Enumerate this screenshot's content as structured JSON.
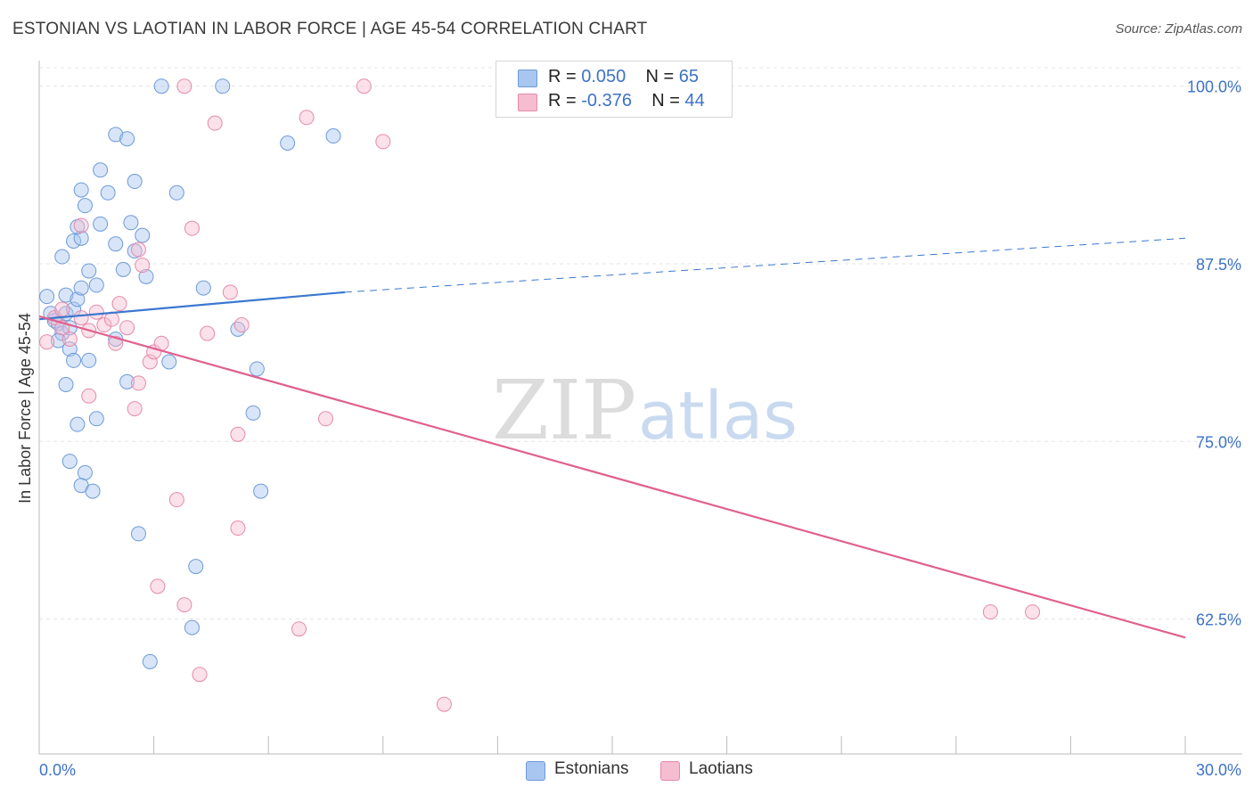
{
  "title": "ESTONIAN VS LAOTIAN IN LABOR FORCE | AGE 45-54 CORRELATION CHART",
  "source": "Source: ZipAtlas.com",
  "watermark": {
    "zip": "ZIP",
    "atlas": "atlas"
  },
  "legend": {
    "rows": [
      {
        "r_label": "R = ",
        "r_value": "0.050",
        "n_label": "N = ",
        "n_value": "65",
        "color": "#a8c6f0",
        "border": "#6d9ad8"
      },
      {
        "r_label": "R = ",
        "r_value": "-0.376",
        "n_label": "N = ",
        "n_value": "44",
        "color": "#f6bcd0",
        "border": "#e68aaa"
      }
    ]
  },
  "bottom_legend": [
    {
      "label": "Estonians",
      "color": "#a8c6f0",
      "border": "#6d9ad8"
    },
    {
      "label": "Laotians",
      "color": "#f6bcd0",
      "border": "#e68aaa"
    }
  ],
  "chart_data": {
    "type": "scatter",
    "title": "ESTONIAN VS LAOTIAN IN LABOR FORCE | AGE 45-54 CORRELATION CHART",
    "xlabel": "",
    "ylabel": "In Labor Force | Age 45-54",
    "xlim": [
      0,
      30
    ],
    "ylim": [
      53,
      101.3
    ],
    "x_tick_labels": [
      "0.0%",
      "30.0%"
    ],
    "y_ticks": [
      62.5,
      75.0,
      87.5,
      100.0
    ],
    "y_tick_labels": [
      "62.5%",
      "75.0%",
      "87.5%",
      "100.0%"
    ],
    "grid": true,
    "series": [
      {
        "name": "Estonians",
        "color": "#7ba7e0",
        "line_color": "#3b78d0",
        "trend": {
          "x": [
            0,
            8.0
          ],
          "y": [
            83.6,
            85.5
          ],
          "dashed_to": [
            30.0,
            89.3
          ]
        },
        "points": [
          [
            0.2,
            85.2
          ],
          [
            0.3,
            84.0
          ],
          [
            0.4,
            83.5
          ],
          [
            0.5,
            83.3
          ],
          [
            0.6,
            82.6
          ],
          [
            0.7,
            84.0
          ],
          [
            0.8,
            83.0
          ],
          [
            0.5,
            82.1
          ],
          [
            0.9,
            84.3
          ],
          [
            0.7,
            85.3
          ],
          [
            1.0,
            85.0
          ],
          [
            1.1,
            85.8
          ],
          [
            0.8,
            81.5
          ],
          [
            0.9,
            80.7
          ],
          [
            1.3,
            80.7
          ],
          [
            0.7,
            79.0
          ],
          [
            1.0,
            76.2
          ],
          [
            1.5,
            76.6
          ],
          [
            0.8,
            73.6
          ],
          [
            1.2,
            72.8
          ],
          [
            1.1,
            71.9
          ],
          [
            1.4,
            71.5
          ],
          [
            0.6,
            88.0
          ],
          [
            0.9,
            89.1
          ],
          [
            1.1,
            89.3
          ],
          [
            1.3,
            87.0
          ],
          [
            1.5,
            86.0
          ],
          [
            1.0,
            90.1
          ],
          [
            1.2,
            91.6
          ],
          [
            1.6,
            90.3
          ],
          [
            1.1,
            92.7
          ],
          [
            1.8,
            92.5
          ],
          [
            1.6,
            94.1
          ],
          [
            2.0,
            88.9
          ],
          [
            2.2,
            87.1
          ],
          [
            2.5,
            88.4
          ],
          [
            2.8,
            86.6
          ],
          [
            2.4,
            90.4
          ],
          [
            2.7,
            89.5
          ],
          [
            2.5,
            93.3
          ],
          [
            3.6,
            92.5
          ],
          [
            2.0,
            96.6
          ],
          [
            2.3,
            96.3
          ],
          [
            3.2,
            100.0
          ],
          [
            4.8,
            100.0
          ],
          [
            2.0,
            82.2
          ],
          [
            2.3,
            79.2
          ],
          [
            3.4,
            80.6
          ],
          [
            4.3,
            85.8
          ],
          [
            5.2,
            82.9
          ],
          [
            5.7,
            80.1
          ],
          [
            5.6,
            77.0
          ],
          [
            5.8,
            71.5
          ],
          [
            2.6,
            68.5
          ],
          [
            4.1,
            66.2
          ],
          [
            4.0,
            61.9
          ],
          [
            2.9,
            59.5
          ],
          [
            6.5,
            96.0
          ],
          [
            7.7,
            96.5
          ]
        ]
      },
      {
        "name": "Laotians",
        "color": "#f2a2bf",
        "line_color": "#e0608e",
        "trend": {
          "x": [
            0,
            30.0
          ],
          "y": [
            83.8,
            61.2
          ]
        },
        "points": [
          [
            0.2,
            82.0
          ],
          [
            0.4,
            83.7
          ],
          [
            0.6,
            84.3
          ],
          [
            0.8,
            82.2
          ],
          [
            0.6,
            83.0
          ],
          [
            1.1,
            83.7
          ],
          [
            1.5,
            84.1
          ],
          [
            1.1,
            90.2
          ],
          [
            1.3,
            78.2
          ],
          [
            1.3,
            82.8
          ],
          [
            1.7,
            83.2
          ],
          [
            1.9,
            83.6
          ],
          [
            2.0,
            81.9
          ],
          [
            2.1,
            84.7
          ],
          [
            2.3,
            83.0
          ],
          [
            2.5,
            77.3
          ],
          [
            2.6,
            79.1
          ],
          [
            2.9,
            80.6
          ],
          [
            3.0,
            81.3
          ],
          [
            3.2,
            81.9
          ],
          [
            2.6,
            88.5
          ],
          [
            2.7,
            87.4
          ],
          [
            4.0,
            90.0
          ],
          [
            4.4,
            82.6
          ],
          [
            5.0,
            85.5
          ],
          [
            5.3,
            83.2
          ],
          [
            4.6,
            97.4
          ],
          [
            5.2,
            75.5
          ],
          [
            5.2,
            68.9
          ],
          [
            3.6,
            70.9
          ],
          [
            3.1,
            64.8
          ],
          [
            3.8,
            63.5
          ],
          [
            4.2,
            58.6
          ],
          [
            7.5,
            76.6
          ],
          [
            6.8,
            61.8
          ],
          [
            7.0,
            97.8
          ],
          [
            8.5,
            100.0
          ],
          [
            3.8,
            100.0
          ],
          [
            9.0,
            96.1
          ],
          [
            10.6,
            56.5
          ],
          [
            24.9,
            63.0
          ],
          [
            26.0,
            63.0
          ]
        ]
      }
    ]
  }
}
